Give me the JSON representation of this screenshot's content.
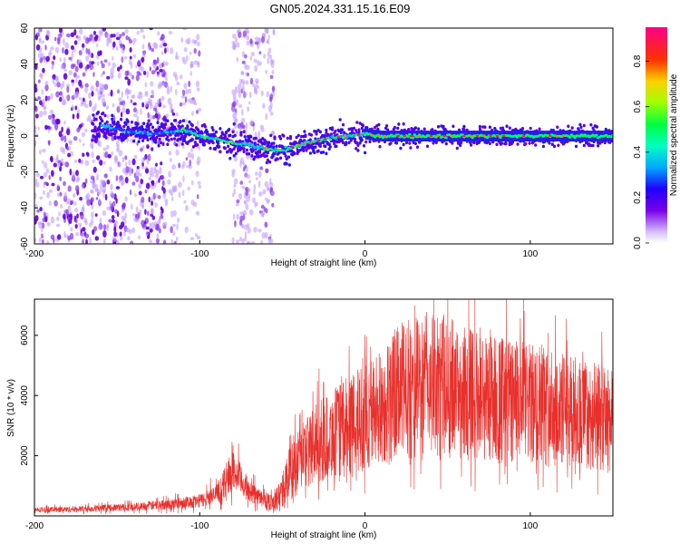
{
  "title": "GN05.2024.331.15.16.E09",
  "chart_data": [
    {
      "type": "heatmap",
      "xlabel": "Height of straight line (km)",
      "ylabel": "Frequency (Hz)",
      "xlim": [
        -200,
        150
      ],
      "ylim": [
        -60,
        60
      ],
      "xticks": [
        -200,
        -100,
        0,
        100
      ],
      "yticks": [
        -60,
        -40,
        -20,
        0,
        20,
        40,
        60
      ],
      "colorbar": {
        "label": "Normalized spectral amplitude",
        "range": [
          0.0,
          0.95
        ],
        "ticks": [
          "0.0",
          "0.2",
          "0.4",
          "0.6",
          "0.8"
        ],
        "colors": [
          "#ffffff",
          "#c8a0ff",
          "#7000e0",
          "#2000ff",
          "#00c8ff",
          "#00ff80",
          "#80ff00",
          "#ffff00",
          "#ff8000",
          "#ff0000",
          "#ff0080"
        ]
      },
      "ridge": {
        "x": [
          -160,
          -150,
          -140,
          -130,
          -120,
          -110,
          -100,
          -90,
          -80,
          -70,
          -60,
          -50,
          -40,
          -30,
          -20,
          -10,
          0,
          10,
          20,
          40,
          60,
          80,
          100,
          120,
          150
        ],
        "freq": [
          6,
          4,
          2,
          1,
          2,
          3,
          0,
          -2,
          -4,
          -5,
          -7,
          -8,
          -5,
          -3,
          -1,
          0,
          1,
          0,
          0,
          0,
          0,
          0,
          0,
          0,
          0
        ]
      }
    },
    {
      "type": "line",
      "xlabel": "Height of straight line (km)",
      "ylabel": "SNR (10 * v/v)",
      "xlim": [
        -200,
        150
      ],
      "ylim": [
        0,
        7200
      ],
      "xticks": [
        -200,
        -100,
        0,
        100
      ],
      "yticks": [
        2000,
        4000,
        6000
      ],
      "color": "#e8302c",
      "envelope": {
        "x": [
          -200,
          -180,
          -160,
          -140,
          -120,
          -100,
          -90,
          -85,
          -80,
          -75,
          -70,
          -60,
          -55,
          -50,
          -45,
          -40,
          -30,
          -20,
          -10,
          0,
          10,
          20,
          30,
          40,
          50,
          60,
          80,
          100,
          120,
          140,
          150
        ],
        "y": [
          200,
          220,
          250,
          300,
          380,
          500,
          700,
          1100,
          1500,
          1200,
          800,
          500,
          450,
          800,
          1500,
          2000,
          2400,
          2700,
          3000,
          3300,
          3600,
          4100,
          4300,
          4400,
          4300,
          4100,
          3900,
          3700,
          3500,
          3300,
          3100
        ]
      }
    }
  ]
}
